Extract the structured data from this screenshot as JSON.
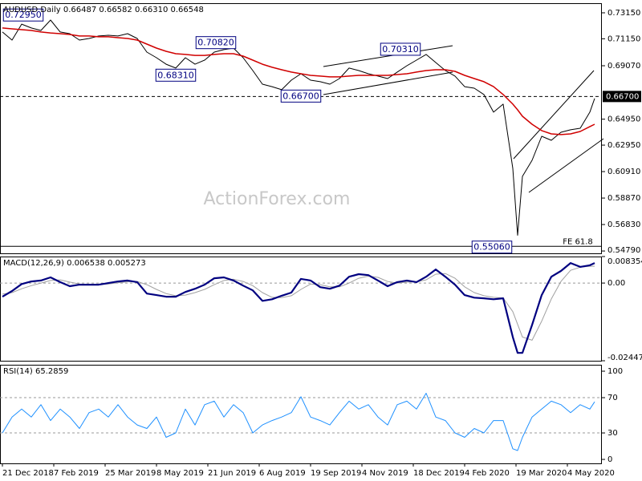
{
  "chart_data": [
    {
      "type": "line",
      "title": "AUDUSD Daily  0.66487 0.66582 0.66310 0.66548",
      "watermark": "ActionForex.com",
      "xlim": [
        -1.5,
        373.5
      ],
      "ylim": [
        0.5461,
        0.7389
      ],
      "yticks": [
        {
          "value": 0.7315,
          "label": "0.73150"
        },
        {
          "value": 0.7115,
          "label": "0.71150"
        },
        {
          "value": 0.6907,
          "label": "0.69070"
        },
        {
          "value": 0.6495,
          "label": "0.64950"
        },
        {
          "value": 0.6295,
          "label": "0.62950"
        },
        {
          "value": 0.6091,
          "label": "0.60910"
        },
        {
          "value": 0.5887,
          "label": "0.58870"
        },
        {
          "value": 0.5683,
          "label": "0.56830"
        },
        {
          "value": 0.5479,
          "label": "0.54790"
        }
      ],
      "current_price": {
        "value": 0.667,
        "label": "0.66700"
      },
      "fe_line": {
        "value": 0.5515,
        "label": "FE 61.8"
      },
      "annotations": [
        {
          "x": 13,
          "value": 0.7295,
          "label": "0.72950"
        },
        {
          "x": 133,
          "value": 0.7082,
          "label": "0.70820"
        },
        {
          "x": 108,
          "value": 0.6831,
          "label": "0.68310"
        },
        {
          "x": 186,
          "value": 0.667,
          "label": "0.66700"
        },
        {
          "x": 248,
          "value": 0.7031,
          "label": "0.70310"
        },
        {
          "x": 305,
          "value": 0.5506,
          "label": "0.55060"
        }
      ],
      "x": [
        0,
        6,
        12,
        18,
        24,
        30,
        36,
        42,
        48,
        54,
        60,
        66,
        72,
        78,
        84,
        90,
        96,
        102,
        108,
        114,
        120,
        126,
        132,
        138,
        144,
        150,
        156,
        162,
        168,
        174,
        180,
        186,
        192,
        198,
        204,
        210,
        216,
        222,
        228,
        234,
        240,
        246,
        252,
        258,
        264,
        270,
        276,
        282,
        288,
        294,
        300,
        306,
        312,
        318,
        321,
        324,
        330,
        336,
        342,
        348,
        354,
        360,
        366,
        369
      ],
      "series": [
        {
          "color": "#000000",
          "line_width": 1,
          "values": [
            0.7167,
            0.7105,
            0.7228,
            0.7198,
            0.7179,
            0.7259,
            0.7167,
            0.7154,
            0.7105,
            0.7117,
            0.7136,
            0.7142,
            0.7136,
            0.7154,
            0.7117,
            0.7012,
            0.6969,
            0.6919,
            0.6889,
            0.6969,
            0.6919,
            0.695,
            0.7012,
            0.7031,
            0.7043,
            0.6969,
            0.687,
            0.6765,
            0.6746,
            0.6722,
            0.6796,
            0.6845,
            0.6796,
            0.6784,
            0.6765,
            0.6808,
            0.6889,
            0.687,
            0.6845,
            0.6827,
            0.6808,
            0.6858,
            0.6907,
            0.695,
            0.6994,
            0.6932,
            0.687,
            0.6827,
            0.6746,
            0.6734,
            0.6685,
            0.6549,
            0.6611,
            0.6116,
            0.56,
            0.6054,
            0.6178,
            0.6363,
            0.6332,
            0.6394,
            0.6413,
            0.6425,
            0.6549,
            0.6655
          ]
        },
        {
          "color": "#d00000",
          "line_width": 1.5,
          "values": [
            0.7198,
            0.7191,
            0.7185,
            0.7179,
            0.7167,
            0.716,
            0.7154,
            0.7148,
            0.7136,
            0.7136,
            0.713,
            0.713,
            0.7123,
            0.7117,
            0.7105,
            0.7074,
            0.7043,
            0.7018,
            0.7,
            0.6994,
            0.6987,
            0.6987,
            0.6994,
            0.7,
            0.7,
            0.6981,
            0.695,
            0.6919,
            0.6895,
            0.6876,
            0.6858,
            0.6845,
            0.6833,
            0.6827,
            0.6821,
            0.6821,
            0.6827,
            0.6833,
            0.6833,
            0.6833,
            0.6833,
            0.6839,
            0.6845,
            0.6858,
            0.687,
            0.6876,
            0.6876,
            0.6864,
            0.6833,
            0.6808,
            0.6784,
            0.6746,
            0.6685,
            0.6611,
            0.6567,
            0.6518,
            0.6456,
            0.6407,
            0.6382,
            0.6376,
            0.6382,
            0.64,
            0.6438,
            0.6456
          ]
        }
      ]
    },
    {
      "type": "line",
      "title": "MACD(12,26,9) 0.006538 0.005273",
      "xlim": [
        -1.5,
        373.5
      ],
      "ylim": [
        -0.02447,
        0.008354
      ],
      "yticks": [
        0.008354,
        {
          "value": 0,
          "label": "0.00"
        },
        -0.02447
      ],
      "hlines": [
        0
      ],
      "x": [
        0,
        6,
        12,
        18,
        24,
        30,
        36,
        42,
        48,
        54,
        60,
        66,
        72,
        78,
        84,
        90,
        96,
        102,
        108,
        114,
        120,
        126,
        132,
        138,
        144,
        150,
        156,
        162,
        168,
        174,
        180,
        186,
        192,
        198,
        204,
        210,
        216,
        222,
        228,
        234,
        240,
        246,
        252,
        258,
        264,
        270,
        276,
        282,
        288,
        294,
        300,
        306,
        312,
        318,
        321,
        324,
        330,
        336,
        342,
        348,
        354,
        360,
        366,
        369
      ],
      "series": [
        {
          "color": "#a0a0a0",
          "line_width": 1,
          "values": [
            -0.0035,
            -0.003,
            -0.0018,
            -0.0008,
            0,
            0.0008,
            0.001,
            0.0003,
            -0.0003,
            -0.0005,
            -0.0005,
            -0.0003,
            0.0001,
            0.0004,
            0.0005,
            -0.0005,
            -0.002,
            -0.0033,
            -0.004,
            -0.0038,
            -0.003,
            -0.002,
            -0.0005,
            0.0008,
            0.0012,
            0.0005,
            -0.0008,
            -0.003,
            -0.0045,
            -0.0046,
            -0.004,
            -0.002,
            -0.0003,
            -0.0005,
            -0.0012,
            -0.0012,
            0,
            0.0015,
            0.0022,
            0.0018,
            0.0005,
            0,
            0.0003,
            0.0004,
            0.001,
            0.0028,
            0.003,
            0.0015,
            -0.0012,
            -0.003,
            -0.004,
            -0.0045,
            -0.0047,
            -0.009,
            -0.013,
            -0.017,
            -0.018,
            -0.012,
            -0.005,
            0.0005,
            0.004,
            0.005,
            0.0053,
            0.0053
          ]
        },
        {
          "color": "#000080",
          "line_width": 2.2,
          "values": [
            -0.0043,
            -0.0025,
            -0.0003,
            0.0005,
            0.0008,
            0.0018,
            0.0003,
            -0.001,
            -0.0005,
            -0.0005,
            -0.0005,
            0,
            0.0005,
            0.0008,
            0.0003,
            -0.0033,
            -0.0038,
            -0.0043,
            -0.0043,
            -0.0028,
            -0.0018,
            -0.0005,
            0.0015,
            0.0018,
            0.0008,
            -0.0008,
            -0.0023,
            -0.0056,
            -0.0051,
            -0.004,
            -0.003,
            0.0013,
            0.0008,
            -0.0013,
            -0.0018,
            -0.0008,
            0.002,
            0.0028,
            0.0025,
            0.0008,
            -0.001,
            0.0003,
            0.0008,
            0.0003,
            0.002,
            0.0043,
            0.002,
            -0.0005,
            -0.0038,
            -0.0046,
            -0.0048,
            -0.0051,
            -0.0048,
            -0.017,
            -0.022,
            -0.022,
            -0.0132,
            -0.0038,
            0.002,
            0.0038,
            0.0063,
            0.0051,
            0.0056,
            0.0063
          ]
        }
      ]
    },
    {
      "type": "line",
      "title": "RSI(14) 65.2859",
      "xlim": [
        -1.5,
        373.5
      ],
      "ylim": [
        -4.5,
        107.3
      ],
      "yticks": [
        0,
        30,
        70,
        100
      ],
      "hlines": [
        30,
        70
      ],
      "xticks": [
        {
          "value": 0,
          "label": "21 Dec 2018"
        },
        {
          "value": 32,
          "label": "7 Feb 2019"
        },
        {
          "value": 64,
          "label": "25 Mar 2019"
        },
        {
          "value": 96,
          "label": "8 May 2019"
        },
        {
          "value": 128,
          "label": "21 Jun 2019"
        },
        {
          "value": 160,
          "label": "6 Aug 2019"
        },
        {
          "value": 192,
          "label": "19 Sep 2019"
        },
        {
          "value": 224,
          "label": "4 Nov 2019"
        },
        {
          "value": 256,
          "label": "18 Dec 2019"
        },
        {
          "value": 288,
          "label": "4 Feb 2020"
        },
        {
          "value": 320,
          "label": "19 Mar 2020"
        },
        {
          "value": 352,
          "label": "4 May 2020"
        }
      ],
      "x": [
        0,
        6,
        12,
        18,
        24,
        30,
        36,
        42,
        48,
        54,
        60,
        66,
        72,
        78,
        84,
        90,
        96,
        102,
        108,
        114,
        120,
        126,
        132,
        138,
        144,
        150,
        156,
        162,
        168,
        174,
        180,
        186,
        192,
        198,
        204,
        210,
        216,
        222,
        228,
        234,
        240,
        246,
        252,
        258,
        264,
        270,
        276,
        282,
        288,
        294,
        300,
        306,
        312,
        318,
        321,
        324,
        330,
        336,
        342,
        348,
        354,
        360,
        366,
        369
      ],
      "series": [
        {
          "color": "#1e90ff",
          "line_width": 1,
          "values": [
            30,
            48,
            57,
            48,
            62,
            44,
            57,
            48,
            35,
            53,
            57,
            48,
            62,
            48,
            39,
            35,
            48,
            25,
            30,
            57,
            39,
            62,
            66,
            48,
            62,
            53,
            30,
            39,
            44,
            48,
            53,
            71,
            48,
            44,
            39,
            53,
            66,
            57,
            62,
            48,
            39,
            62,
            66,
            57,
            75,
            48,
            44,
            30,
            25,
            35,
            30,
            44,
            44,
            12,
            10,
            25,
            48,
            57,
            66,
            62,
            53,
            62,
            57,
            65.29
          ]
        }
      ]
    }
  ]
}
